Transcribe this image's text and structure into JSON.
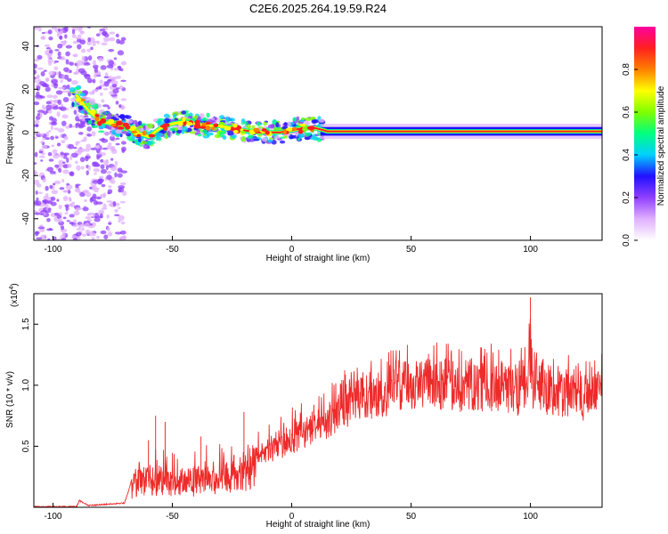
{
  "figure_title": "C2E6.2025.264.19.59.R24",
  "chart_data": [
    {
      "type": "heatmap",
      "name": "spectrogram",
      "title": "C2E6.2025.264.19.59.R24",
      "xlabel": "Height of straight line (km)",
      "ylabel": "Frequency (Hz)",
      "xlim": [
        -108,
        130
      ],
      "ylim": [
        -50,
        49
      ],
      "xticks": [
        -100,
        -50,
        0,
        50,
        100
      ],
      "yticks": [
        -40,
        -20,
        0,
        20,
        40
      ],
      "xtick_labels": [
        "-100",
        "-50",
        "0",
        "50",
        "100"
      ],
      "ytick_labels": [
        "-40",
        "-20",
        "0",
        "20",
        "40"
      ],
      "ridge": {
        "x": [
          -95,
          -90,
          -85,
          -80,
          -75,
          -70,
          -65,
          -60,
          -55,
          -50,
          -45,
          -40,
          -35,
          -30,
          -25,
          -20,
          -15,
          -10,
          -5,
          0,
          5,
          10,
          15,
          130
        ],
        "y": [
          18,
          17,
          10,
          5,
          4,
          3,
          0,
          -2,
          2,
          4,
          5,
          4,
          3,
          3,
          2,
          1,
          0,
          0,
          0,
          1,
          2,
          2,
          0.5,
          0.5
        ]
      },
      "colorbar": {
        "label": "Normalized spectral amplitude",
        "range": [
          0,
          1
        ],
        "ticks": [
          0.0,
          0.2,
          0.4,
          0.6,
          0.8
        ],
        "tick_labels": [
          "0.0",
          "0.2",
          "0.4",
          "0.6",
          "0.8"
        ],
        "colors": [
          "#ffffff",
          "#e0b0ff",
          "#9040ff",
          "#2010ff",
          "#00d0ff",
          "#00ff80",
          "#80ff00",
          "#ffff00",
          "#ff8000",
          "#ff2020",
          "#ff00a0"
        ]
      }
    },
    {
      "type": "line",
      "name": "snr",
      "xlabel": "Height of straight line (km)",
      "ylabel": "SNR (10 * v/v)",
      "scale_label": "(x10",
      "scale_exponent": "4",
      "scale_suffix": ")",
      "xlim": [
        -108,
        130
      ],
      "ylim": [
        0,
        1.75
      ],
      "xticks": [
        -100,
        -50,
        0,
        50,
        100
      ],
      "yticks": [
        0.5,
        1.0,
        1.5
      ],
      "xtick_labels": [
        "-100",
        "-50",
        "0",
        "50",
        "100"
      ],
      "ytick_labels": [
        "0.5",
        "1.0",
        "1.5"
      ],
      "color": "#ee2a2a",
      "envelope": {
        "x": [
          -108,
          -95,
          -90,
          -89,
          -85,
          -70,
          -68,
          -66,
          -60,
          -55,
          -50,
          -45,
          -40,
          -30,
          -20,
          -10,
          0,
          10,
          20,
          25,
          30,
          40,
          50,
          60,
          70,
          80,
          90,
          99,
          100,
          101,
          110,
          120,
          130
        ],
        "y": [
          0,
          0,
          0,
          0.05,
          0.01,
          0.03,
          0.15,
          0.3,
          0.35,
          0.38,
          0.3,
          0.32,
          0.35,
          0.38,
          0.45,
          0.55,
          0.68,
          0.8,
          0.95,
          1.05,
          1.1,
          1.15,
          1.2,
          1.22,
          1.2,
          1.2,
          1.18,
          1.2,
          1.7,
          1.25,
          1.15,
          1.12,
          1.12
        ]
      },
      "spikes": [
        {
          "x": -57,
          "y": 0.75
        },
        {
          "x": -53,
          "y": 0.7
        },
        {
          "x": -20,
          "y": 0.78
        },
        {
          "x": -60,
          "y": 0.55
        },
        {
          "x": -38,
          "y": 0.58
        },
        {
          "x": 100,
          "y": 1.72
        }
      ]
    }
  ]
}
